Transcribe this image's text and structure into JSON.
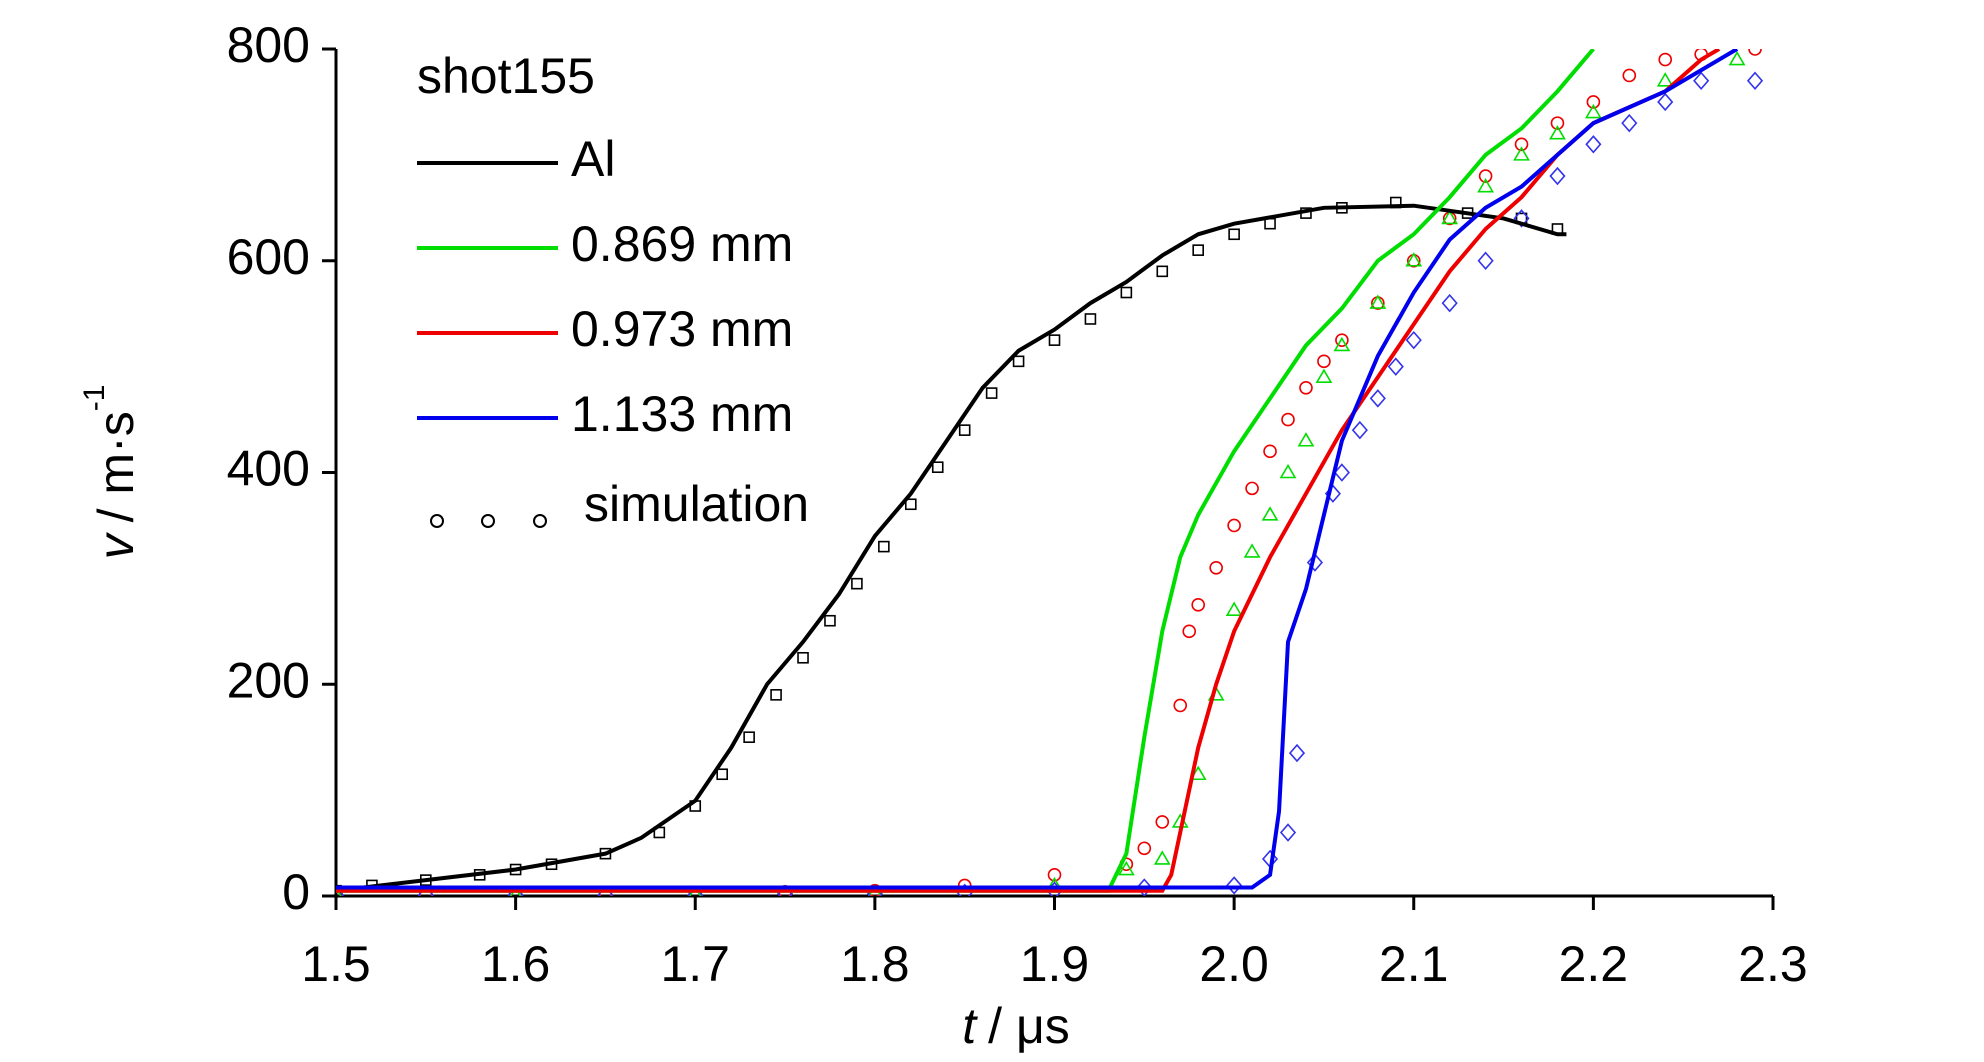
{
  "chart_data": {
    "type": "line",
    "xlabel": {
      "symbol": "t",
      "unit": "/ μs"
    },
    "ylabel": {
      "symbol": "v",
      "unit": "/ m·s",
      "exponent": "-1"
    },
    "legend_title": "shot155",
    "simulation_label": "simulation",
    "xlim": [
      1.5,
      2.3
    ],
    "ylim": [
      0,
      800
    ],
    "xticks": [
      1.5,
      1.6,
      1.7,
      1.8,
      1.9,
      {
        "value": 2,
        "label": "2.0"
      },
      2.1,
      2.2,
      2.3
    ],
    "yticks": [
      0,
      200,
      400,
      600,
      800
    ],
    "series": [
      {
        "name": "Al",
        "color": "#000000",
        "x": [
          1.5,
          1.55,
          1.6,
          1.65,
          1.67,
          1.7,
          1.72,
          1.74,
          1.76,
          1.78,
          1.8,
          1.82,
          1.84,
          1.86,
          1.88,
          1.9,
          1.92,
          1.94,
          1.96,
          1.98,
          2.0,
          2.05,
          2.1,
          2.15,
          2.18,
          2.185
        ],
        "values": [
          5,
          15,
          25,
          40,
          55,
          90,
          140,
          200,
          240,
          285,
          340,
          380,
          430,
          480,
          515,
          535,
          560,
          580,
          605,
          625,
          635,
          650,
          652,
          640,
          625,
          625
        ]
      },
      {
        "name": "0.869 mm",
        "color": "#00dd00",
        "x": [
          1.5,
          1.7,
          1.93,
          1.94,
          1.95,
          1.96,
          1.97,
          1.98,
          2.0,
          2.02,
          2.04,
          2.06,
          2.08,
          2.1,
          2.12,
          2.14,
          2.16,
          2.18,
          2.2
        ],
        "values": [
          5,
          5,
          5,
          40,
          150,
          250,
          320,
          360,
          420,
          470,
          520,
          555,
          600,
          625,
          660,
          700,
          725,
          760,
          800
        ]
      },
      {
        "name": "0.973 mm",
        "color": "#ee0000",
        "x": [
          1.5,
          1.7,
          1.96,
          1.965,
          1.97,
          1.98,
          1.99,
          2.0,
          2.02,
          2.04,
          2.06,
          2.08,
          2.1,
          2.12,
          2.14,
          2.16,
          2.18,
          2.2,
          2.24,
          2.26,
          2.27
        ],
        "values": [
          5,
          5,
          5,
          20,
          60,
          140,
          200,
          250,
          320,
          380,
          440,
          490,
          540,
          590,
          630,
          660,
          700,
          730,
          760,
          790,
          800
        ]
      },
      {
        "name": "1.133 mm",
        "color": "#0000ee",
        "x": [
          1.5,
          1.8,
          2.01,
          2.02,
          2.025,
          2.03,
          2.04,
          2.05,
          2.06,
          2.08,
          2.1,
          2.12,
          2.14,
          2.16,
          2.18,
          2.2,
          2.24,
          2.28
        ],
        "values": [
          8,
          8,
          8,
          20,
          80,
          240,
          290,
          360,
          430,
          510,
          570,
          620,
          650,
          670,
          700,
          730,
          760,
          800
        ]
      }
    ],
    "simulation": [
      {
        "color": "#000000",
        "marker": "square",
        "x": [
          1.5,
          1.52,
          1.55,
          1.58,
          1.6,
          1.62,
          1.65,
          1.68,
          1.7,
          1.715,
          1.73,
          1.745,
          1.76,
          1.775,
          1.79,
          1.805,
          1.82,
          1.835,
          1.85,
          1.865,
          1.88,
          1.9,
          1.92,
          1.94,
          1.96,
          1.98,
          2.0,
          2.02,
          2.04,
          2.06,
          2.09,
          2.13,
          2.16,
          2.18
        ],
        "values": [
          5,
          10,
          15,
          20,
          25,
          30,
          40,
          60,
          85,
          115,
          150,
          190,
          225,
          260,
          295,
          330,
          370,
          405,
          440,
          475,
          505,
          525,
          545,
          570,
          590,
          610,
          625,
          635,
          645,
          650,
          655,
          645,
          640,
          630
        ]
      },
      {
        "color": "#ee0000",
        "marker": "circle",
        "x": [
          1.5,
          1.55,
          1.6,
          1.65,
          1.7,
          1.75,
          1.8,
          1.85,
          1.9,
          1.94,
          1.95,
          1.96,
          1.97,
          1.975,
          1.98,
          1.99,
          2.0,
          2.01,
          2.02,
          2.03,
          2.04,
          2.05,
          2.06,
          2.08,
          2.1,
          2.12,
          2.14,
          2.16,
          2.18,
          2.2,
          2.22,
          2.24,
          2.26,
          2.29
        ],
        "values": [
          2,
          2,
          2,
          3,
          3,
          4,
          5,
          10,
          20,
          30,
          45,
          70,
          180,
          250,
          275,
          310,
          350,
          385,
          420,
          450,
          480,
          505,
          525,
          560,
          600,
          640,
          680,
          710,
          730,
          750,
          775,
          790,
          795,
          800
        ]
      },
      {
        "color": "#00dd00",
        "marker": "triangle",
        "x": [
          1.5,
          1.6,
          1.7,
          1.8,
          1.9,
          1.94,
          1.96,
          1.97,
          1.98,
          1.99,
          2.0,
          2.01,
          2.02,
          2.03,
          2.04,
          2.05,
          2.06,
          2.08,
          2.1,
          2.12,
          2.14,
          2.16,
          2.18,
          2.2,
          2.24,
          2.28
        ],
        "values": [
          1,
          1,
          2,
          3,
          10,
          25,
          35,
          70,
          115,
          190,
          270,
          325,
          360,
          400,
          430,
          490,
          520,
          560,
          600,
          640,
          670,
          700,
          720,
          740,
          770,
          790
        ]
      },
      {
        "color": "#3333ee",
        "marker": "diamond",
        "x": [
          1.5,
          1.55,
          1.6,
          1.65,
          1.7,
          1.75,
          1.8,
          1.85,
          1.9,
          1.95,
          2.0,
          2.02,
          2.03,
          2.035,
          2.045,
          2.055,
          2.06,
          2.07,
          2.08,
          2.09,
          2.1,
          2.12,
          2.14,
          2.16,
          2.18,
          2.2,
          2.22,
          2.24,
          2.26,
          2.29
        ],
        "values": [
          1,
          1,
          1,
          1,
          1,
          2,
          2,
          3,
          5,
          8,
          10,
          35,
          60,
          135,
          315,
          380,
          400,
          440,
          470,
          500,
          525,
          560,
          600,
          640,
          680,
          710,
          730,
          750,
          770,
          770
        ]
      }
    ]
  }
}
